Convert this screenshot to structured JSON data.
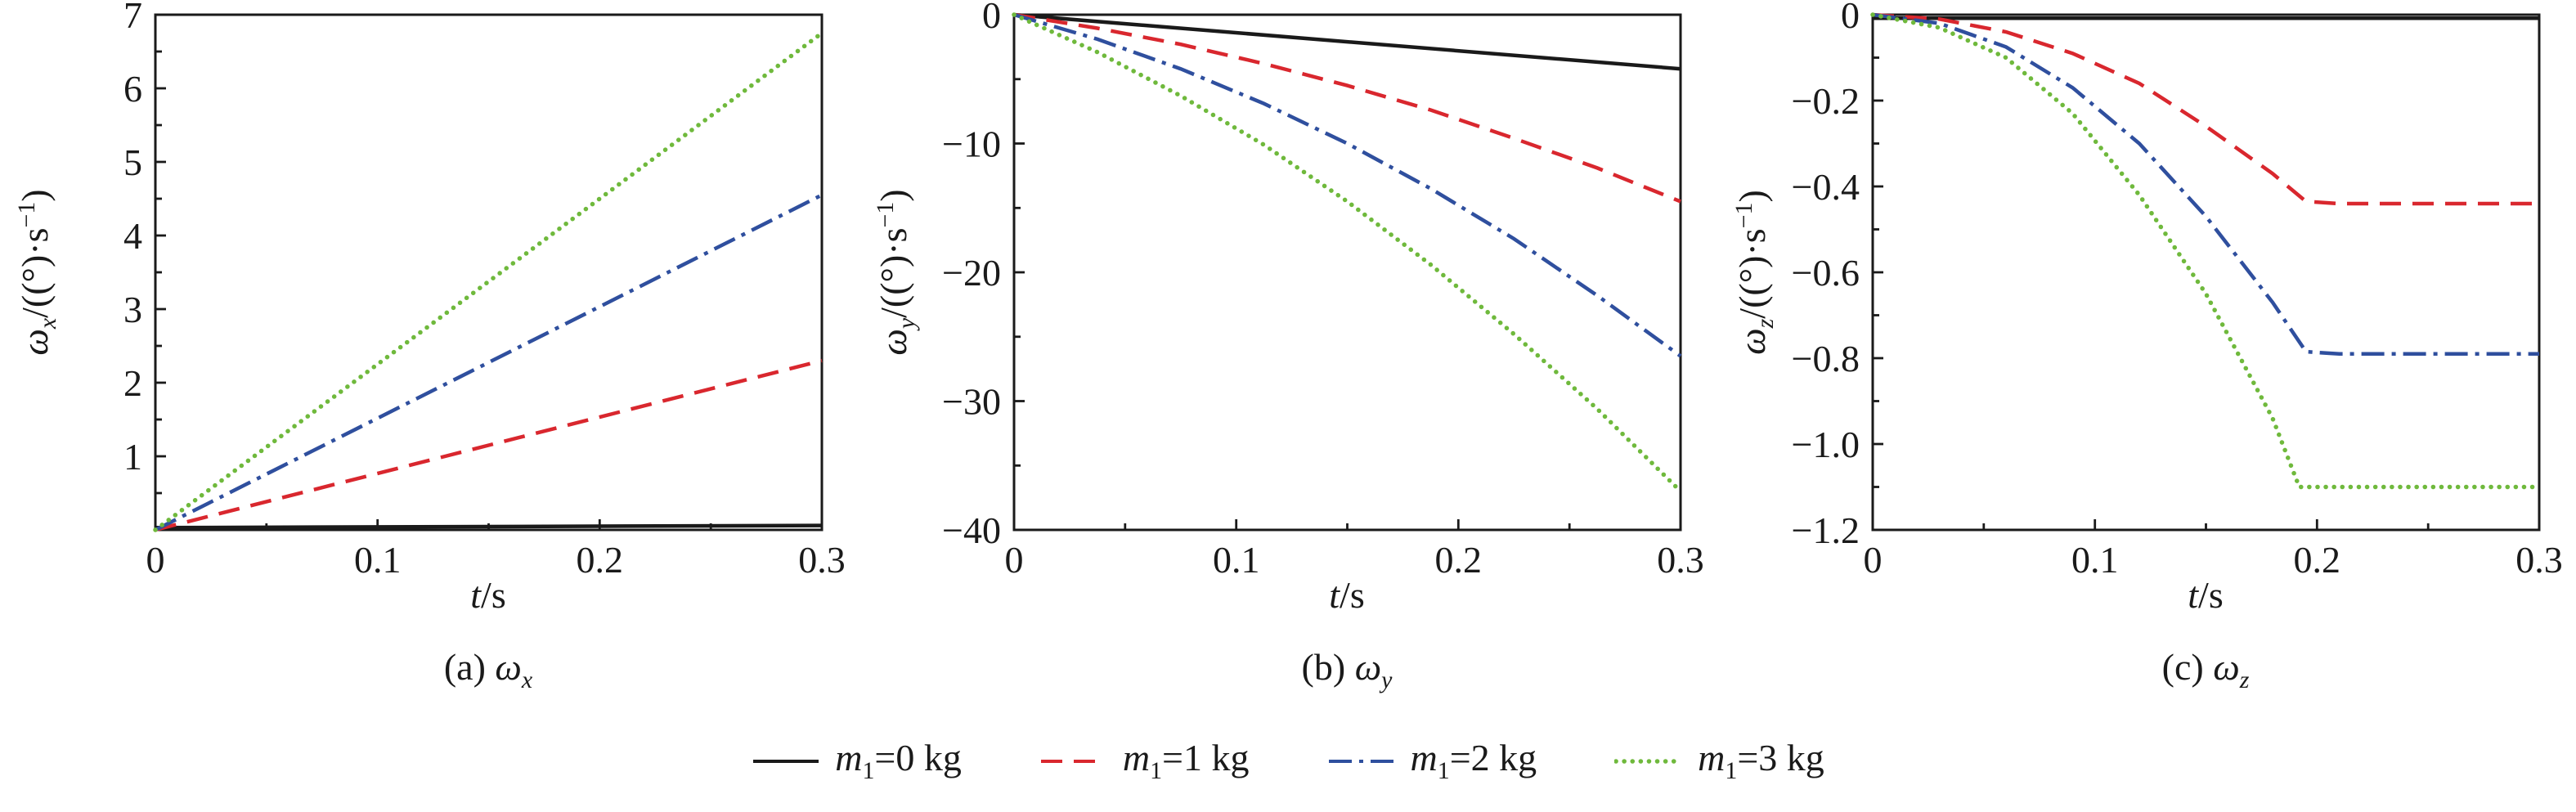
{
  "figure": {
    "background": "#ffffff",
    "frame_color": "#1a1a1a"
  },
  "legend": {
    "position": "bottom-center",
    "items": [
      {
        "label": "*m*_1_=0 kg",
        "color": "#1a1a1a",
        "dash": "solid"
      },
      {
        "label": "*m*_1_=1 kg",
        "color": "#d9272e",
        "dash": "dashed"
      },
      {
        "label": "*m*_1_=2 kg",
        "color": "#2f4f9e",
        "dash": "dashdot"
      },
      {
        "label": "*m*_1_=3 kg",
        "color": "#6fb93c",
        "dash": "dotted"
      }
    ]
  },
  "chart_data": [
    {
      "type": "line",
      "caption": "(a) *ω_x_*",
      "xlabel": "*t*/s",
      "ylabel": "*ω_x_*/((°)·s^−1^)",
      "xlim": [
        0,
        0.3
      ],
      "ylim": [
        0,
        7
      ],
      "xtick_vals": [
        0,
        0.1,
        0.2,
        0.3
      ],
      "xtick_labels": [
        "0",
        "0.1",
        "0.2",
        "0.3"
      ],
      "x_minor_step": 0.05,
      "ytick_vals": [
        1,
        2,
        3,
        4,
        5,
        6,
        7
      ],
      "ytick_labels": [
        "1",
        "2",
        "3",
        "4",
        "5",
        "6",
        "7"
      ],
      "y_minor_step": 0.5,
      "grid": false,
      "series": [
        {
          "name": "m1=0 kg",
          "color": "#1a1a1a",
          "dash": "solid",
          "x": [
            0,
            0.3
          ],
          "y": [
            0.03,
            0.06
          ]
        },
        {
          "name": "m1=1 kg",
          "color": "#d9272e",
          "dash": "dashed",
          "x": [
            0,
            0.3
          ],
          "y": [
            0,
            2.3
          ]
        },
        {
          "name": "m1=2 kg",
          "color": "#2f4f9e",
          "dash": "dashdot",
          "x": [
            0,
            0.3
          ],
          "y": [
            0,
            4.55
          ]
        },
        {
          "name": "m1=3 kg",
          "color": "#6fb93c",
          "dash": "dotted",
          "x": [
            0,
            0.3
          ],
          "y": [
            0,
            6.75
          ]
        }
      ]
    },
    {
      "type": "line",
      "caption": "(b) *ω_y_*",
      "xlabel": "*t*/s",
      "ylabel": "*ω_y_*/((°)·s^−1^)",
      "xlim": [
        0,
        0.3
      ],
      "ylim": [
        -40,
        0
      ],
      "xtick_vals": [
        0,
        0.1,
        0.2,
        0.3
      ],
      "xtick_labels": [
        "0",
        "0.1",
        "0.2",
        "0.3"
      ],
      "x_minor_step": 0.05,
      "ytick_vals": [
        0,
        -10,
        -20,
        -30,
        -40
      ],
      "ytick_labels": [
        "0",
        "−10",
        "−20",
        "−30",
        "−40"
      ],
      "y_minor_step": 5,
      "grid": false,
      "series": [
        {
          "name": "m1=0 kg",
          "color": "#1a1a1a",
          "dash": "solid",
          "x": [
            0,
            0.3
          ],
          "y": [
            0,
            -4.2
          ]
        },
        {
          "name": "m1=1 kg",
          "color": "#d9272e",
          "dash": "dashed",
          "x": [
            0,
            0.0375,
            0.075,
            0.1125,
            0.15,
            0.1875,
            0.225,
            0.2625,
            0.3
          ],
          "y": [
            0,
            -1.05,
            -2.3,
            -3.8,
            -5.5,
            -7.4,
            -9.6,
            -11.9,
            -14.5
          ]
        },
        {
          "name": "m1=2 kg",
          "color": "#2f4f9e",
          "dash": "dashdot",
          "x": [
            0,
            0.0375,
            0.075,
            0.1125,
            0.15,
            0.1875,
            0.225,
            0.2625,
            0.3
          ],
          "y": [
            0,
            -1.9,
            -4.2,
            -6.9,
            -10,
            -13.5,
            -17.4,
            -21.8,
            -26.5
          ]
        },
        {
          "name": "m1=3 kg",
          "color": "#6fb93c",
          "dash": "dotted",
          "x": [
            0,
            0.0375,
            0.075,
            0.1125,
            0.15,
            0.1875,
            0.225,
            0.2625,
            0.3
          ],
          "y": [
            0,
            -2.9,
            -6.3,
            -10.1,
            -14.5,
            -19.4,
            -24.8,
            -30.6,
            -37
          ]
        }
      ]
    },
    {
      "type": "line",
      "caption": "(c) *ω_z_*",
      "xlabel": "*t*/s",
      "ylabel": "*ω_z_*/((°)·s^−1^)",
      "xlim": [
        0,
        0.3
      ],
      "ylim": [
        -1.2,
        0
      ],
      "xtick_vals": [
        0,
        0.1,
        0.2,
        0.3
      ],
      "xtick_labels": [
        "0",
        "0.1",
        "0.2",
        "0.3"
      ],
      "x_minor_step": 0.05,
      "ytick_vals": [
        0,
        -0.2,
        -0.4,
        -0.6,
        -0.8,
        -1.0,
        -1.2
      ],
      "ytick_labels": [
        "0",
        "−0.2",
        "−0.4",
        "−0.6",
        "−0.8",
        "−1.0",
        "−1.2"
      ],
      "y_minor_step": 0.1,
      "grid": false,
      "series": [
        {
          "name": "m1=0 kg",
          "color": "#1a1a1a",
          "dash": "solid",
          "x": [
            0,
            0.3
          ],
          "y": [
            -0.008,
            -0.008
          ]
        },
        {
          "name": "m1=1 kg",
          "color": "#d9272e",
          "dash": "dashed",
          "x": [
            0,
            0.03,
            0.06,
            0.09,
            0.12,
            0.15,
            0.18,
            0.195,
            0.21,
            0.3
          ],
          "y": [
            0,
            -0.01,
            -0.04,
            -0.09,
            -0.16,
            -0.26,
            -0.37,
            -0.435,
            -0.44,
            -0.44
          ]
        },
        {
          "name": "m1=2 kg",
          "color": "#2f4f9e",
          "dash": "dashdot",
          "x": [
            0,
            0.03,
            0.06,
            0.09,
            0.12,
            0.15,
            0.18,
            0.195,
            0.21,
            0.3
          ],
          "y": [
            0,
            -0.02,
            -0.075,
            -0.17,
            -0.3,
            -0.47,
            -0.67,
            -0.785,
            -0.79,
            -0.79
          ]
        },
        {
          "name": "m1=3 kg",
          "color": "#6fb93c",
          "dash": "dotted",
          "x": [
            0,
            0.03,
            0.06,
            0.09,
            0.12,
            0.15,
            0.18,
            0.192,
            0.21,
            0.3
          ],
          "y": [
            0,
            -0.03,
            -0.1,
            -0.23,
            -0.42,
            -0.65,
            -0.94,
            -1.1,
            -1.1,
            -1.1
          ]
        }
      ]
    }
  ]
}
